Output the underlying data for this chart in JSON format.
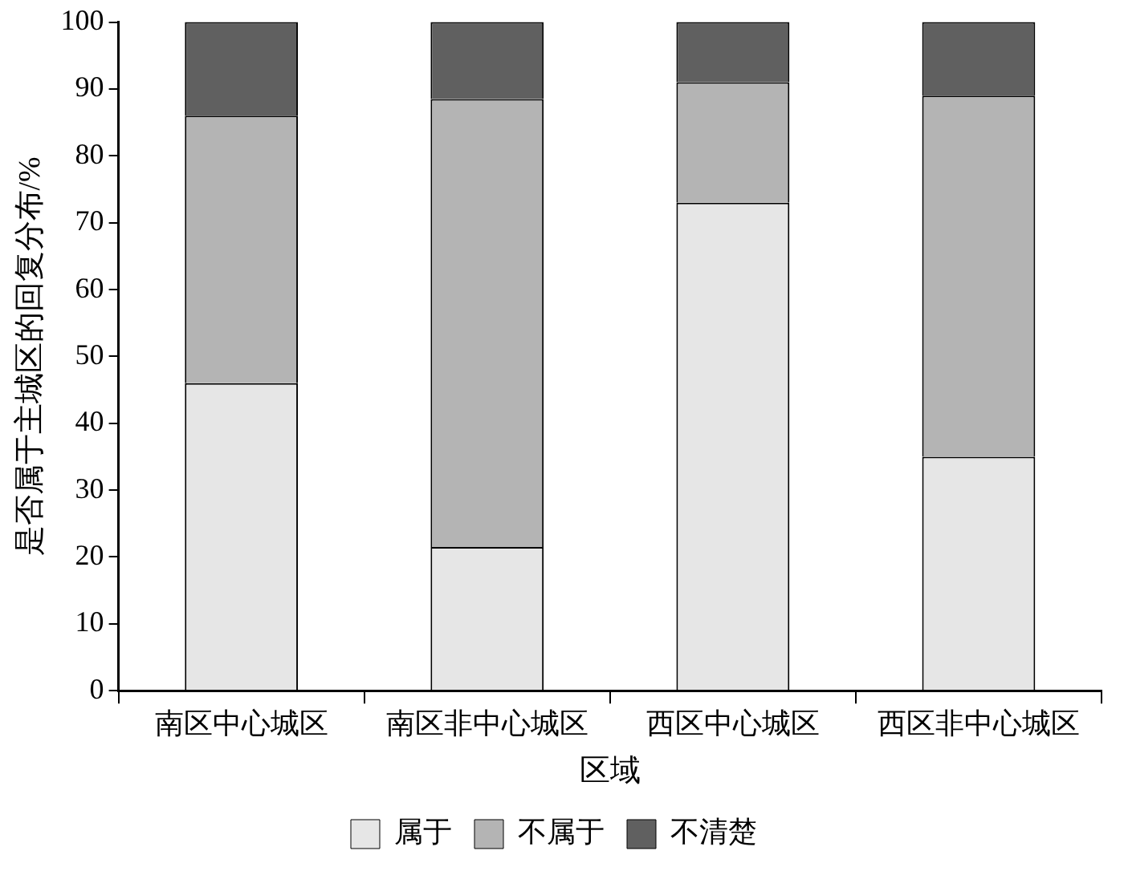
{
  "chart_data": {
    "type": "bar",
    "stacked": true,
    "xlabel": "区域",
    "ylabel": "是否属于主城区的回复分布/%",
    "categories": [
      "南区中心城区",
      "南区非中心城区",
      "西区中心城区",
      "西区非中心城区"
    ],
    "series": [
      {
        "name": "属于",
        "color": "#e6e6e6",
        "values": [
          46,
          21.5,
          73,
          35
        ]
      },
      {
        "name": "不属于",
        "color": "#b4b4b4",
        "values": [
          40,
          67,
          18,
          54
        ]
      },
      {
        "name": "不清楚",
        "color": "#606060",
        "values": [
          14,
          11.5,
          9,
          11
        ]
      }
    ],
    "ylim": [
      0,
      100
    ],
    "yticks": [
      0,
      10,
      20,
      30,
      40,
      50,
      60,
      70,
      80,
      90,
      100
    ],
    "grid": false,
    "legend": "bottom"
  }
}
